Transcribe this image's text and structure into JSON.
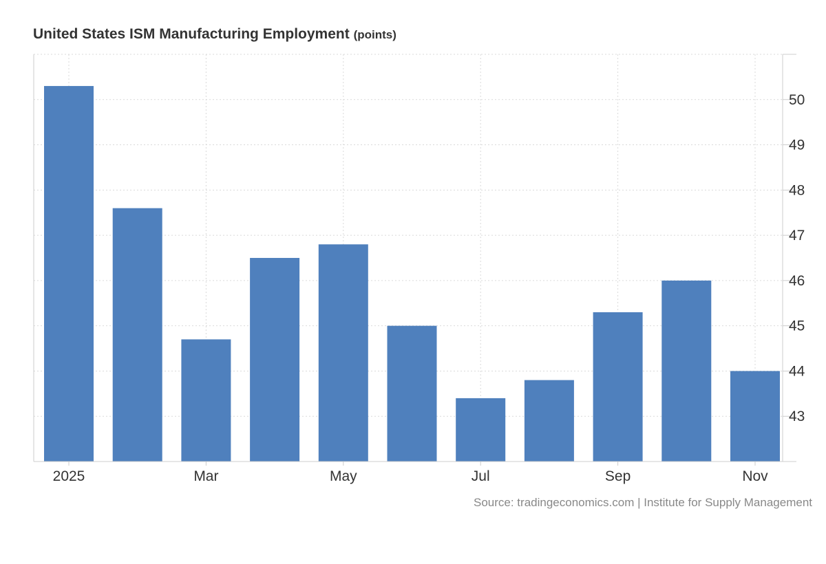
{
  "header": {
    "title": "United States ISM Manufacturing Employment",
    "units": "(points)"
  },
  "source": "Source: tradingeconomics.com | Institute for Supply Management",
  "colors": {
    "bar": "#4f80bd",
    "grid": "#d9d9d9",
    "axis": "#cccccc"
  },
  "chart_data": {
    "type": "bar",
    "title": "United States ISM Manufacturing Employment",
    "units": "points",
    "categories": [
      "Jan 2025",
      "Feb",
      "Mar",
      "Apr",
      "May",
      "Jun",
      "Jul",
      "Aug",
      "Sep",
      "Oct",
      "Nov"
    ],
    "values": [
      50.3,
      47.6,
      44.7,
      46.5,
      46.8,
      45.0,
      43.4,
      43.8,
      45.3,
      46.0,
      44.0
    ],
    "x_tick_labels": [
      {
        "index": 0,
        "label": "2025"
      },
      {
        "index": 2,
        "label": "Mar"
      },
      {
        "index": 4,
        "label": "May"
      },
      {
        "index": 6,
        "label": "Jul"
      },
      {
        "index": 8,
        "label": "Sep"
      },
      {
        "index": 10,
        "label": "Nov"
      }
    ],
    "y_ticks": [
      43,
      44,
      45,
      46,
      47,
      48,
      49,
      50
    ],
    "ylim": [
      42,
      51
    ],
    "y_axis_side": "right",
    "grid": true,
    "xlabel": "",
    "ylabel": ""
  }
}
